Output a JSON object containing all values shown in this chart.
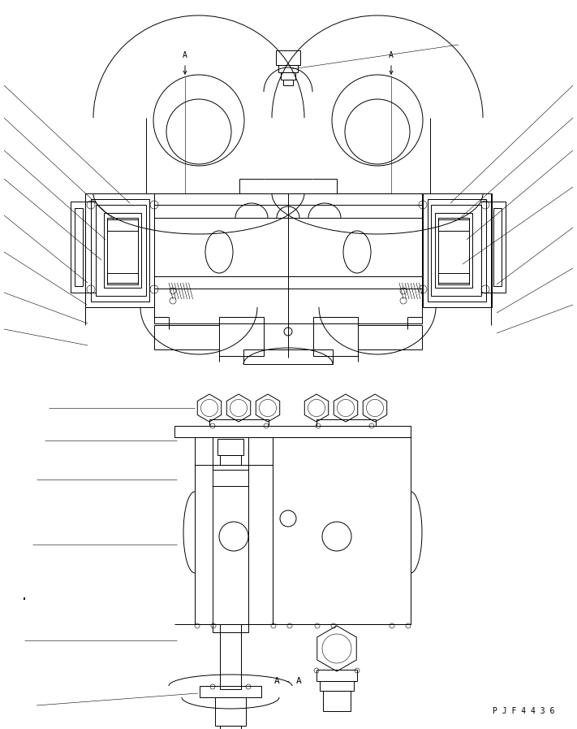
{
  "bg_color": "#ffffff",
  "lw": 0.7,
  "tlw": 0.4,
  "label_aa": "A - A",
  "label_pjf": "P J F 4 4 3 6",
  "figsize": [
    7.11,
    8.97
  ],
  "dpi": 100
}
